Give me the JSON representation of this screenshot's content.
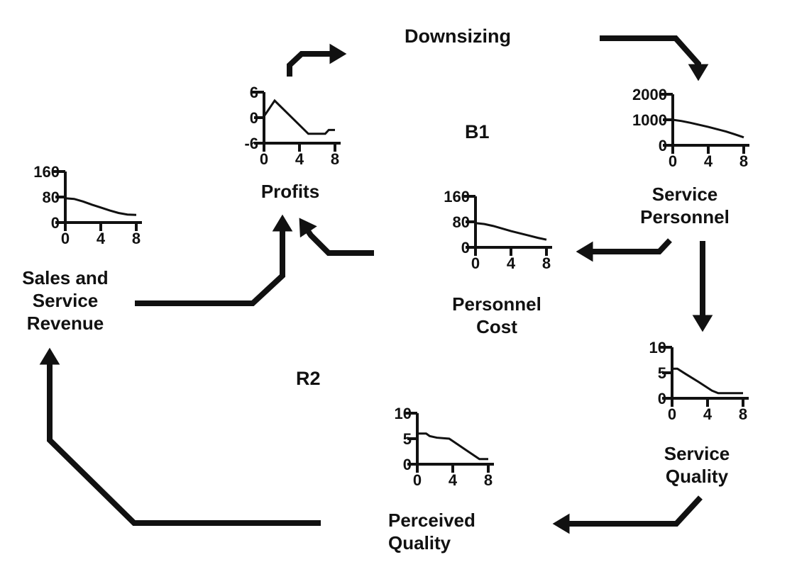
{
  "figure": {
    "background": "#ffffff",
    "ink": "#111111"
  },
  "labels": {
    "downsizing": "Downsizing",
    "loop_b1": "B1",
    "loop_r2": "R2"
  },
  "arrows": [
    {
      "from": "Profits",
      "to": "Downsizing"
    },
    {
      "from": "Downsizing",
      "to": "Service Personnel"
    },
    {
      "from": "Service Personnel",
      "to": "Personnel Cost"
    },
    {
      "from": "Service Personnel",
      "to": "Service Quality"
    },
    {
      "from": "Service Quality",
      "to": "Perceived Quality"
    },
    {
      "from": "Perceived Quality",
      "to": "Sales and Service Revenue"
    },
    {
      "from": "Sales and Service Revenue",
      "to": "Profits"
    },
    {
      "from": "Personnel Cost",
      "to": "Profits"
    }
  ],
  "chart_data": [
    {
      "id": "profits",
      "type": "line",
      "title": "Profits",
      "title_lines": [
        "Profits"
      ],
      "xlim": [
        0,
        8
      ],
      "ylim": [
        -6,
        6
      ],
      "x_ticks": [
        "0",
        "4",
        "8"
      ],
      "y_ticks": [
        "6",
        "0",
        "-6"
      ],
      "x": [
        0,
        1.2,
        5,
        6.9,
        7.3,
        8
      ],
      "values": [
        0.3,
        4,
        -3.8,
        -3.8,
        -2.9,
        -2.9
      ]
    },
    {
      "id": "service-personnel",
      "type": "line",
      "title": "Service Personnel",
      "title_lines": [
        "Service",
        "Personnel"
      ],
      "xlim": [
        0,
        8
      ],
      "ylim": [
        0,
        2000
      ],
      "x_ticks": [
        "0",
        "4",
        "8"
      ],
      "y_ticks": [
        "2000",
        "1000",
        "0"
      ],
      "x": [
        0,
        1,
        2,
        3,
        4,
        5,
        6,
        7,
        8
      ],
      "values": [
        1000,
        950,
        880,
        800,
        720,
        630,
        540,
        430,
        310
      ]
    },
    {
      "id": "sales-service-revenue",
      "type": "line",
      "title": "Sales and Service Revenue",
      "title_lines": [
        "Sales and",
        "Service",
        "Revenue"
      ],
      "xlim": [
        0,
        8
      ],
      "ylim": [
        0,
        160
      ],
      "x_ticks": [
        "0",
        "4",
        "8"
      ],
      "y_ticks": [
        "160",
        "80",
        "0"
      ],
      "x": [
        0,
        1,
        2,
        3,
        4,
        5,
        6,
        7,
        8
      ],
      "values": [
        76,
        74,
        66,
        56,
        47,
        38,
        30,
        25,
        24
      ]
    },
    {
      "id": "personnel-cost",
      "type": "line",
      "title": "Personnel Cost",
      "title_lines": [
        "Personnel",
        "Cost"
      ],
      "xlim": [
        0,
        8
      ],
      "ylim": [
        0,
        160
      ],
      "x_ticks": [
        "0",
        "4",
        "8"
      ],
      "y_ticks": [
        "160",
        "80",
        "0"
      ],
      "x": [
        0,
        1,
        2,
        3,
        4,
        5,
        6,
        7,
        8
      ],
      "values": [
        76,
        73,
        67,
        59,
        51,
        44,
        37,
        30,
        24
      ]
    },
    {
      "id": "service-quality",
      "type": "line",
      "title": "Service Quality",
      "title_lines": [
        "Service",
        "Quality"
      ],
      "xlim": [
        0,
        8
      ],
      "ylim": [
        0,
        10
      ],
      "x_ticks": [
        "0",
        "4",
        "8"
      ],
      "y_ticks": [
        "10",
        "5",
        "0"
      ],
      "x": [
        0,
        0.6,
        1.5,
        3,
        4.5,
        5.2,
        8
      ],
      "values": [
        5.8,
        5.8,
        4.8,
        3.2,
        1.5,
        1,
        1
      ]
    },
    {
      "id": "perceived-quality",
      "type": "line",
      "title": "Perceived Quality",
      "title_lines": [
        "Perceived",
        "Quality"
      ],
      "xlim": [
        0,
        8
      ],
      "ylim": [
        0,
        10
      ],
      "x_ticks": [
        "0",
        "4",
        "8"
      ],
      "y_ticks": [
        "10",
        "5",
        "0"
      ],
      "x": [
        0,
        1,
        1.4,
        2.2,
        3.6,
        7,
        8
      ],
      "values": [
        6,
        6,
        5.5,
        5.2,
        5,
        1,
        1
      ]
    }
  ]
}
